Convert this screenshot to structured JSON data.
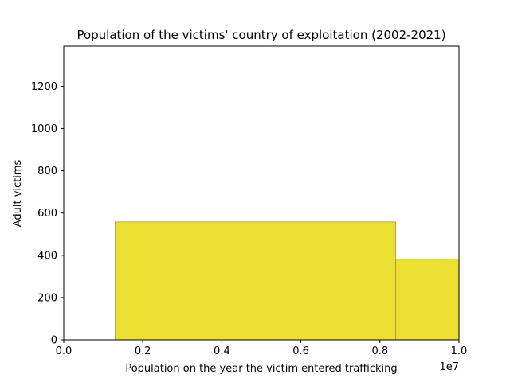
{
  "chart_data": {
    "type": "bar",
    "title": "Population of the victims' country of exploitation (2002-2021)",
    "xlabel": "Population on the year the victim entered trafficking",
    "ylabel": "Adult victims",
    "x_offset_label": "1e7",
    "xlim": [
      0.0,
      1.0
    ],
    "ylim": [
      0,
      1390
    ],
    "x_ticks": [
      {
        "value": 0.0,
        "label": "0.0"
      },
      {
        "value": 0.2,
        "label": "0.2"
      },
      {
        "value": 0.4,
        "label": "0.4"
      },
      {
        "value": 0.6,
        "label": "0.6"
      },
      {
        "value": 0.8,
        "label": "0.8"
      },
      {
        "value": 1.0,
        "label": "1.0"
      }
    ],
    "y_ticks": [
      {
        "value": 0,
        "label": "0"
      },
      {
        "value": 200,
        "label": "200"
      },
      {
        "value": 400,
        "label": "400"
      },
      {
        "value": 600,
        "label": "600"
      },
      {
        "value": 800,
        "label": "800"
      },
      {
        "value": 1000,
        "label": "1000"
      },
      {
        "value": 1200,
        "label": "1200"
      }
    ],
    "bins": [
      {
        "x0": 0.13,
        "x1": 0.84,
        "value": 558
      },
      {
        "x0": 0.84,
        "x1": 1.0,
        "value": 382
      }
    ],
    "bar_color": "#ebdf32",
    "bar_edge_color": "#a09a40",
    "grid": false,
    "legend": "none"
  }
}
